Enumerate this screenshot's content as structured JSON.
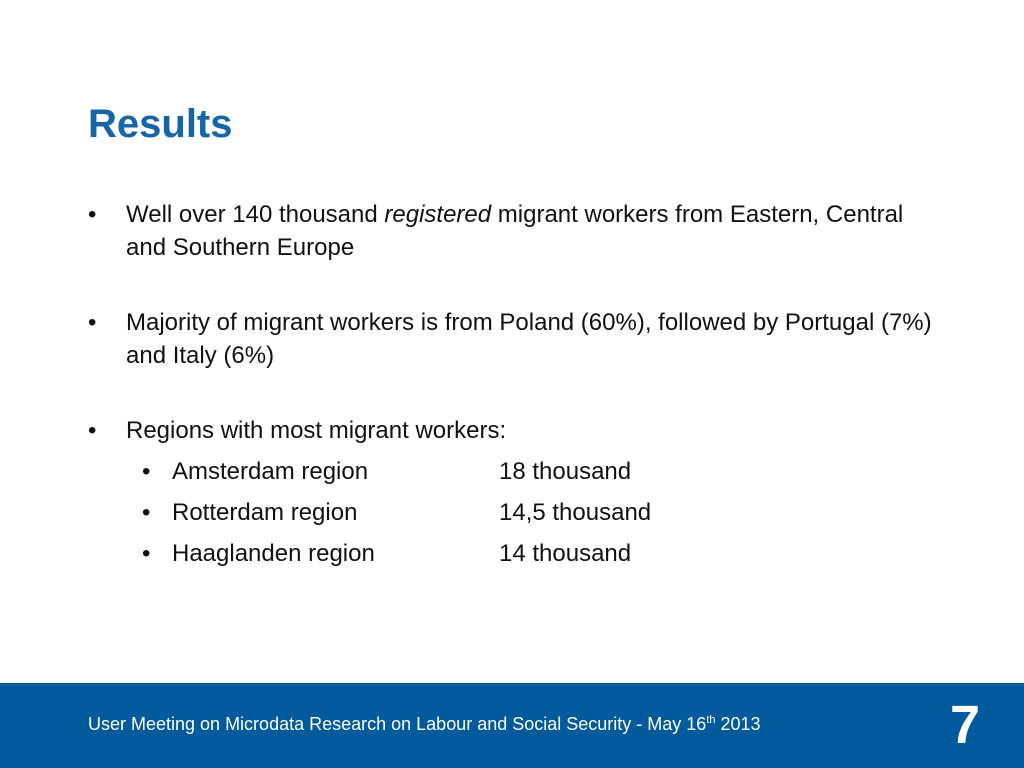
{
  "slide": {
    "title": "Results",
    "bullet_symbol": "•",
    "bullets": [
      {
        "pre": "Well over 140 thousand ",
        "emph": "registered",
        "post": " migrant workers from Eastern, Central and Southern Europe"
      },
      {
        "text": "Majority of migrant workers is from Poland (60%), followed by Portugal (7%) and Italy (6%)"
      },
      {
        "text": "Regions with most migrant workers:",
        "sub": [
          {
            "region": "Amsterdam region",
            "count": "18 thousand"
          },
          {
            "region": "Rotterdam region",
            "count": "14,5 thousand"
          },
          {
            "region": "Haaglanden region",
            "count": "14 thousand"
          }
        ]
      }
    ]
  },
  "footer": {
    "text": "User Meeting on Microdata Research on Labour and Social Security - May 16",
    "sup": "th",
    "year": " 2013",
    "page_number": "7"
  },
  "colors": {
    "title": "#1565a8",
    "footer_bg": "#005a9c",
    "footer_text": "#ffffff"
  }
}
